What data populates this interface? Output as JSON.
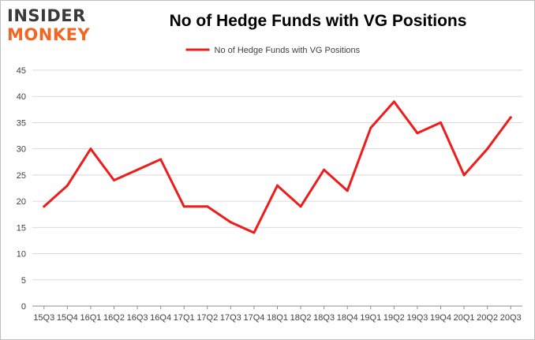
{
  "logo": {
    "line1": "INSIDER",
    "line2": "MONKEY"
  },
  "chart_data": {
    "type": "line",
    "title": "No of Hedge Funds with VG Positions",
    "xlabel": "",
    "ylabel": "",
    "categories": [
      "15Q3",
      "15Q4",
      "16Q1",
      "16Q2",
      "16Q3",
      "16Q4",
      "17Q1",
      "17Q2",
      "17Q3",
      "17Q4",
      "18Q1",
      "18Q2",
      "18Q3",
      "18Q4",
      "19Q1",
      "19Q2",
      "19Q3",
      "19Q4",
      "20Q1",
      "20Q2",
      "20Q3"
    ],
    "series": [
      {
        "name": "No of Hedge Funds with VG Positions",
        "values": [
          19,
          23,
          30,
          24,
          26,
          28,
          19,
          19,
          16,
          14,
          23,
          19,
          26,
          22,
          34,
          39,
          33,
          35,
          25,
          30,
          36
        ]
      }
    ],
    "ylim": [
      0,
      45
    ],
    "yticks": [
      0,
      5,
      10,
      15,
      20,
      25,
      30,
      35,
      40,
      45
    ],
    "grid": true,
    "legend_position": "top-center",
    "line_color": "#ee1c1c"
  }
}
